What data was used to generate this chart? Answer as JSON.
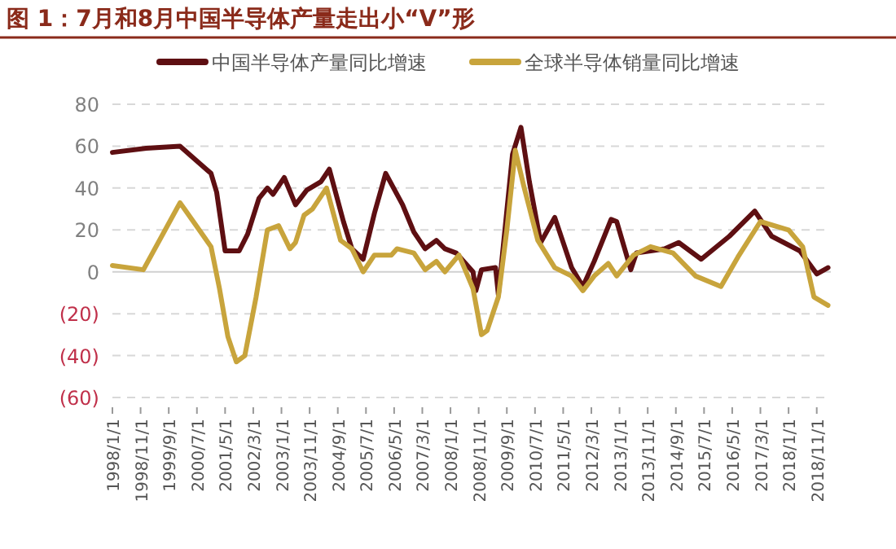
{
  "chart_data": {
    "type": "line",
    "title": "图 1：7月和8月中国半导体产量走出小“V”形",
    "series": [
      {
        "name": "中国半导体产量同比增速",
        "color": "#5e0f12",
        "x": [
          "1998-01",
          "1999-01",
          "2000-01",
          "2000-12",
          "2001-02",
          "2001-05",
          "2001-10",
          "2002-01",
          "2002-05",
          "2002-08",
          "2002-10",
          "2003-02",
          "2003-06",
          "2003-10",
          "2004-03",
          "2004-06",
          "2004-11",
          "2005-02",
          "2005-06",
          "2005-10",
          "2006-02",
          "2006-08",
          "2006-12",
          "2007-04",
          "2007-08",
          "2007-11",
          "2008-03",
          "2008-09",
          "2008-10",
          "2008-12",
          "2009-05",
          "2009-06",
          "2009-11",
          "2010-02",
          "2010-05",
          "2010-09",
          "2011-02",
          "2011-08",
          "2011-12",
          "2012-04",
          "2012-10",
          "2012-12",
          "2013-05",
          "2013-07",
          "2014-05",
          "2014-10",
          "2015-06",
          "2016-04",
          "2017-01",
          "2017-07",
          "2018-05",
          "2018-11",
          "2019-03"
        ],
        "values": [
          57,
          59,
          60,
          47,
          38,
          10,
          10,
          18,
          35,
          40,
          37,
          45,
          32,
          39,
          43,
          49,
          24,
          11,
          6,
          28,
          47,
          32,
          19,
          11,
          15,
          11,
          9,
          0,
          -9,
          1,
          2,
          -11,
          56,
          69,
          43,
          14,
          26,
          2,
          -7,
          5,
          25,
          24,
          1,
          9,
          11,
          14,
          6,
          17,
          29,
          17,
          10,
          -1,
          2
        ]
      },
      {
        "name": "全球半导体销量同比增速",
        "color": "#c8a43c",
        "x": [
          "1998-01",
          "1998-12",
          "2000-01",
          "2000-12",
          "2001-03",
          "2001-06",
          "2001-09",
          "2001-12",
          "2002-04",
          "2002-08",
          "2002-12",
          "2003-04",
          "2003-06",
          "2003-09",
          "2003-12",
          "2004-05",
          "2004-10",
          "2005-02",
          "2005-06",
          "2005-10",
          "2006-04",
          "2006-06",
          "2006-12",
          "2007-04",
          "2007-08",
          "2007-11",
          "2008-04",
          "2008-09",
          "2008-12",
          "2009-02",
          "2009-06",
          "2009-09",
          "2009-12",
          "2010-03",
          "2010-08",
          "2011-02",
          "2011-08",
          "2011-12",
          "2012-04",
          "2012-09",
          "2012-12",
          "2013-06",
          "2013-12",
          "2014-08",
          "2015-04",
          "2016-01",
          "2016-07",
          "2017-03",
          "2018-01",
          "2018-06",
          "2018-10",
          "2019-03"
        ],
        "values": [
          3,
          1,
          33,
          12,
          -8,
          -31,
          -43,
          -40,
          -12,
          20,
          22,
          11,
          14,
          27,
          30,
          40,
          15,
          11,
          0,
          8,
          8,
          11,
          9,
          1,
          5,
          0,
          8,
          -8,
          -30,
          -28,
          -12,
          20,
          58,
          41,
          15,
          2,
          -2,
          -9,
          -2,
          4,
          -2,
          8,
          12,
          9,
          -2,
          -7,
          7,
          24,
          20,
          12,
          -12,
          -16
        ]
      }
    ],
    "xlim": [
      "1998-01",
      "2019-04"
    ],
    "xticks": [
      {
        "value": "1998-01-01",
        "label": "1998/1/1"
      },
      {
        "value": "1998-11-01",
        "label": "1998/11/1"
      },
      {
        "value": "1999-09-01",
        "label": "1999/9/1"
      },
      {
        "value": "2000-07-01",
        "label": "2000/7/1"
      },
      {
        "value": "2001-05-01",
        "label": "2001/5/1"
      },
      {
        "value": "2002-03-01",
        "label": "2002/3/1"
      },
      {
        "value": "2003-01-01",
        "label": "2003/1/1"
      },
      {
        "value": "2003-11-01",
        "label": "2003/11/1"
      },
      {
        "value": "2004-09-01",
        "label": "2004/9/1"
      },
      {
        "value": "2005-07-01",
        "label": "2005/7/1"
      },
      {
        "value": "2006-05-01",
        "label": "2006/5/1"
      },
      {
        "value": "2007-03-01",
        "label": "2007/3/1"
      },
      {
        "value": "2008-01-01",
        "label": "2008/1/1"
      },
      {
        "value": "2008-11-01",
        "label": "2008/11/1"
      },
      {
        "value": "2009-09-01",
        "label": "2009/9/1"
      },
      {
        "value": "2010-07-01",
        "label": "2010/7/1"
      },
      {
        "value": "2011-05-01",
        "label": "2011/5/1"
      },
      {
        "value": "2012-03-01",
        "label": "2012/3/1"
      },
      {
        "value": "2013-01-01",
        "label": "2013/1/1"
      },
      {
        "value": "2013-11-01",
        "label": "2013/11/1"
      },
      {
        "value": "2014-09-01",
        "label": "2014/9/1"
      },
      {
        "value": "2015-07-01",
        "label": "2015/7/1"
      },
      {
        "value": "2016-05-01",
        "label": "2016/5/1"
      },
      {
        "value": "2017-03-01",
        "label": "2017/3/1"
      },
      {
        "value": "2018-01-01",
        "label": "2018/1/1"
      },
      {
        "value": "2018-11-01",
        "label": "2018/11/1"
      }
    ],
    "ylim": [
      -60,
      80
    ],
    "yticks": [
      {
        "value": -60,
        "label": "(60)"
      },
      {
        "value": -40,
        "label": "(40)"
      },
      {
        "value": -20,
        "label": "(20)"
      },
      0,
      20,
      40,
      60,
      80
    ],
    "grid": "y",
    "legend": "top",
    "marker": "none",
    "line_style": "solid"
  }
}
